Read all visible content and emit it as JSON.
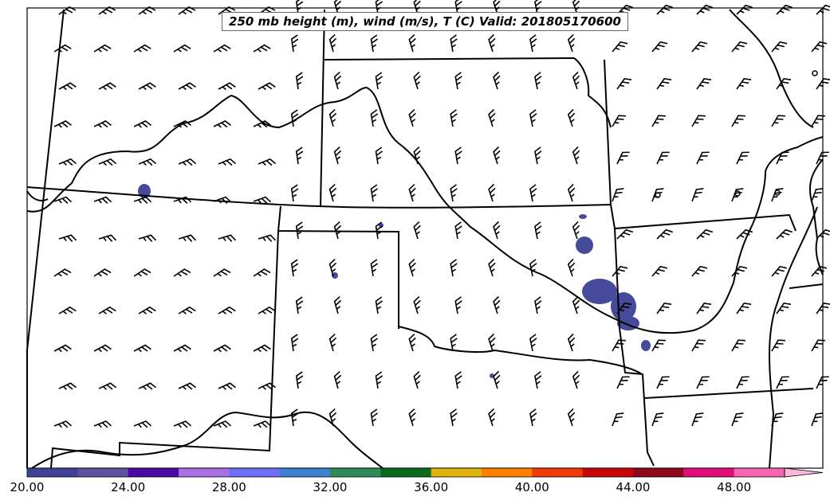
{
  "title": "250 mb height (m), wind (m/s), T (C) Valid: 201805170600",
  "colorbar": {
    "colors": [
      "#3f4398",
      "#5e529f",
      "#4a0aa5",
      "#a870e2",
      "#6e6ff6",
      "#3c82d1",
      "#2e8b57",
      "#0a6a1c",
      "#dfb50d",
      "#ff8000",
      "#ee3b08",
      "#c80808",
      "#8c0a1a",
      "#e00e78",
      "#f765b2"
    ],
    "extend_color": "#fbb8dc",
    "tick_labels": [
      "20.00",
      "24.00",
      "28.00",
      "32.00",
      "36.00",
      "40.00",
      "44.00",
      "48.00"
    ]
  },
  "feature_color": "#454a9a",
  "line_color": "#000000"
}
